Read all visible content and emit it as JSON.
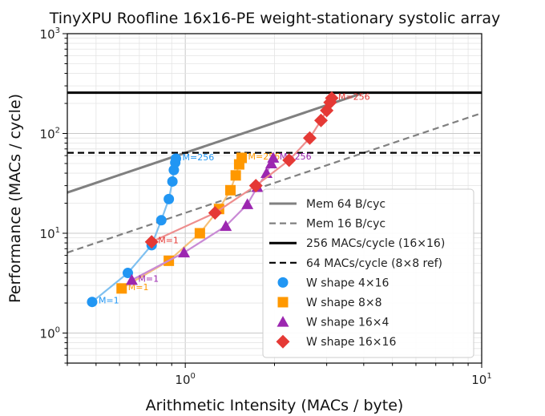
{
  "chart_data": {
    "type": "scatter",
    "title": "TinyXPU Roofline 16x16-PE weight-stationary systolic array",
    "xlabel": "Arithmetic Intensity (MACs / byte)",
    "ylabel": "Performance (MACs / cycle)",
    "xscale": "log",
    "yscale": "log",
    "xlim": [
      0.4,
      10
    ],
    "ylim": [
      0.5,
      1000
    ],
    "grid": true,
    "x_ticks": [
      {
        "base": "10",
        "exp": "0",
        "value": 1
      },
      {
        "base": "10",
        "exp": "1",
        "value": 10
      }
    ],
    "y_ticks": [
      {
        "base": "10",
        "exp": "0",
        "value": 1
      },
      {
        "base": "10",
        "exp": "1",
        "value": 10
      },
      {
        "base": "10",
        "exp": "2",
        "value": 100
      },
      {
        "base": "10",
        "exp": "3",
        "value": 1000
      }
    ],
    "lines": [
      {
        "name": "Mem 64 B/cyc",
        "kind": "bandwidth",
        "slope": 64,
        "color": "#808080",
        "style": "solid",
        "width": 3
      },
      {
        "name": "Mem 16 B/cyc",
        "kind": "bandwidth",
        "slope": 16,
        "color": "#808080",
        "style": "dashed",
        "width": 2.2
      },
      {
        "name": "256 MACs/cycle (16×16)",
        "kind": "peak",
        "value": 256,
        "color": "#000000",
        "style": "solid",
        "width": 3
      },
      {
        "name": "64 MACs/cycle (8×8 ref)",
        "kind": "peak",
        "value": 64,
        "color": "#000000",
        "style": "dashed",
        "width": 2.2
      }
    ],
    "series": [
      {
        "name": "W shape 4×16",
        "marker": "circle",
        "color": "#2196F3",
        "line_color": "#7fc0f0",
        "points": [
          [
            0.485,
            2.05
          ],
          [
            0.64,
            4.0
          ],
          [
            0.77,
            7.6
          ],
          [
            0.83,
            13.5
          ],
          [
            0.88,
            22
          ],
          [
            0.905,
            33
          ],
          [
            0.915,
            43
          ],
          [
            0.925,
            51
          ],
          [
            0.93,
            56
          ]
        ],
        "labels": [
          {
            "text": "M=1",
            "x": 0.485,
            "y": 2.05
          },
          {
            "text": "M=256",
            "x": 0.93,
            "y": 56
          }
        ]
      },
      {
        "name": "W shape 8×8",
        "marker": "square",
        "color": "#FF9800",
        "line_color": "#f5c078",
        "points": [
          [
            0.61,
            2.8
          ],
          [
            0.88,
            5.3
          ],
          [
            1.12,
            10
          ],
          [
            1.3,
            17.5
          ],
          [
            1.42,
            27
          ],
          [
            1.48,
            38
          ],
          [
            1.52,
            49
          ],
          [
            1.55,
            57
          ]
        ],
        "labels": [
          {
            "text": "M=1",
            "x": 0.61,
            "y": 2.8
          },
          {
            "text": "M=256",
            "x": 1.55,
            "y": 57
          }
        ]
      },
      {
        "name": "W shape 16×4",
        "marker": "triangle",
        "color": "#9C27B0",
        "line_color": "#c98ad5",
        "points": [
          [
            0.66,
            3.4
          ],
          [
            0.99,
            6.4
          ],
          [
            1.37,
            11.8
          ],
          [
            1.62,
            19.5
          ],
          [
            1.75,
            29
          ],
          [
            1.88,
            40
          ],
          [
            1.95,
            50
          ],
          [
            1.98,
            57
          ]
        ],
        "labels": [
          {
            "text": "M=1",
            "x": 0.66,
            "y": 3.4
          },
          {
            "text": "M=256",
            "x": 1.98,
            "y": 57
          }
        ]
      },
      {
        "name": "W shape 16×16",
        "marker": "diamond",
        "color": "#E53935",
        "line_color": "#ee8e8e",
        "points": [
          [
            0.77,
            8.2
          ],
          [
            1.26,
            16
          ],
          [
            1.73,
            30
          ],
          [
            2.24,
            54
          ],
          [
            2.63,
            90
          ],
          [
            2.87,
            135
          ],
          [
            3.0,
            170
          ],
          [
            3.08,
            205
          ],
          [
            3.12,
            226
          ]
        ],
        "labels": [
          {
            "text": "M=1",
            "x": 0.77,
            "y": 8.2
          },
          {
            "text": "M=256",
            "x": 3.12,
            "y": 226
          }
        ]
      }
    ],
    "legend": "lower-right"
  }
}
